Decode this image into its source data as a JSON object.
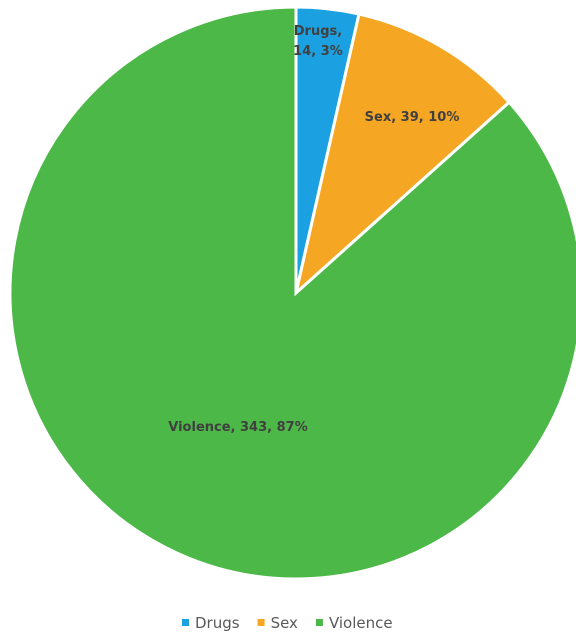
{
  "chart_data": {
    "type": "pie",
    "title": "",
    "slices": [
      {
        "label": "Drugs",
        "value": 14,
        "percent": "3%",
        "color": "#1BA1E2",
        "data_label": [
          "Drugs,",
          "14, 3%"
        ]
      },
      {
        "label": "Sex",
        "value": 39,
        "percent": "10%",
        "color": "#F5A623",
        "data_label": [
          "Sex, 39, 10%"
        ]
      },
      {
        "label": "Violence",
        "value": 343,
        "percent": "87%",
        "color": "#4CB848",
        "data_label": [
          "Violence, 343, 87%"
        ]
      }
    ],
    "start_angle_deg": 0,
    "direction": "clockwise",
    "legend": {
      "position": "bottom",
      "entries": [
        "Drugs",
        "Sex",
        "Violence"
      ]
    }
  }
}
